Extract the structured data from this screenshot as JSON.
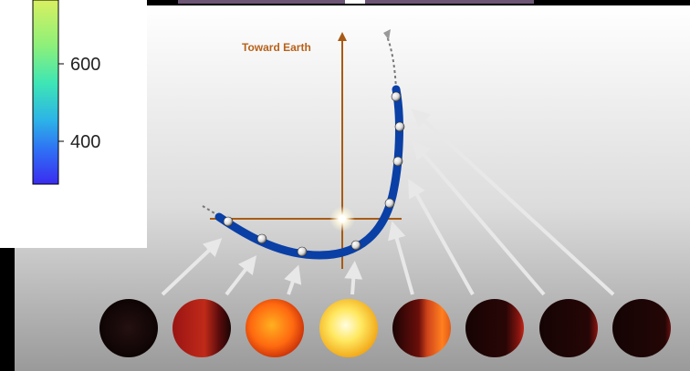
{
  "diagram": {
    "axis_label": "Toward Earth",
    "colorbar": {
      "ticks": [
        {
          "label": "600",
          "value": 600
        },
        {
          "label": "400",
          "value": 400
        }
      ]
    },
    "colors": {
      "orbit": "#0a3fa6",
      "axis": "#a85a14",
      "axis_label": "#b8621a",
      "star": "#ffffff",
      "arrows": "#e8e8e8"
    },
    "phase_spheres": [
      {
        "phase": "night side",
        "day_fraction": 0.0
      },
      {
        "phase": "morning crescent",
        "day_fraction": 0.25
      },
      {
        "phase": "dayside partial",
        "day_fraction": 0.8
      },
      {
        "phase": "full dayside",
        "day_fraction": 1.0
      },
      {
        "phase": "evening half",
        "day_fraction": 0.5
      },
      {
        "phase": "evening crescent",
        "day_fraction": 0.15
      },
      {
        "phase": "night thin crescent",
        "day_fraction": 0.07
      },
      {
        "phase": "night side",
        "day_fraction": 0.02
      }
    ]
  }
}
